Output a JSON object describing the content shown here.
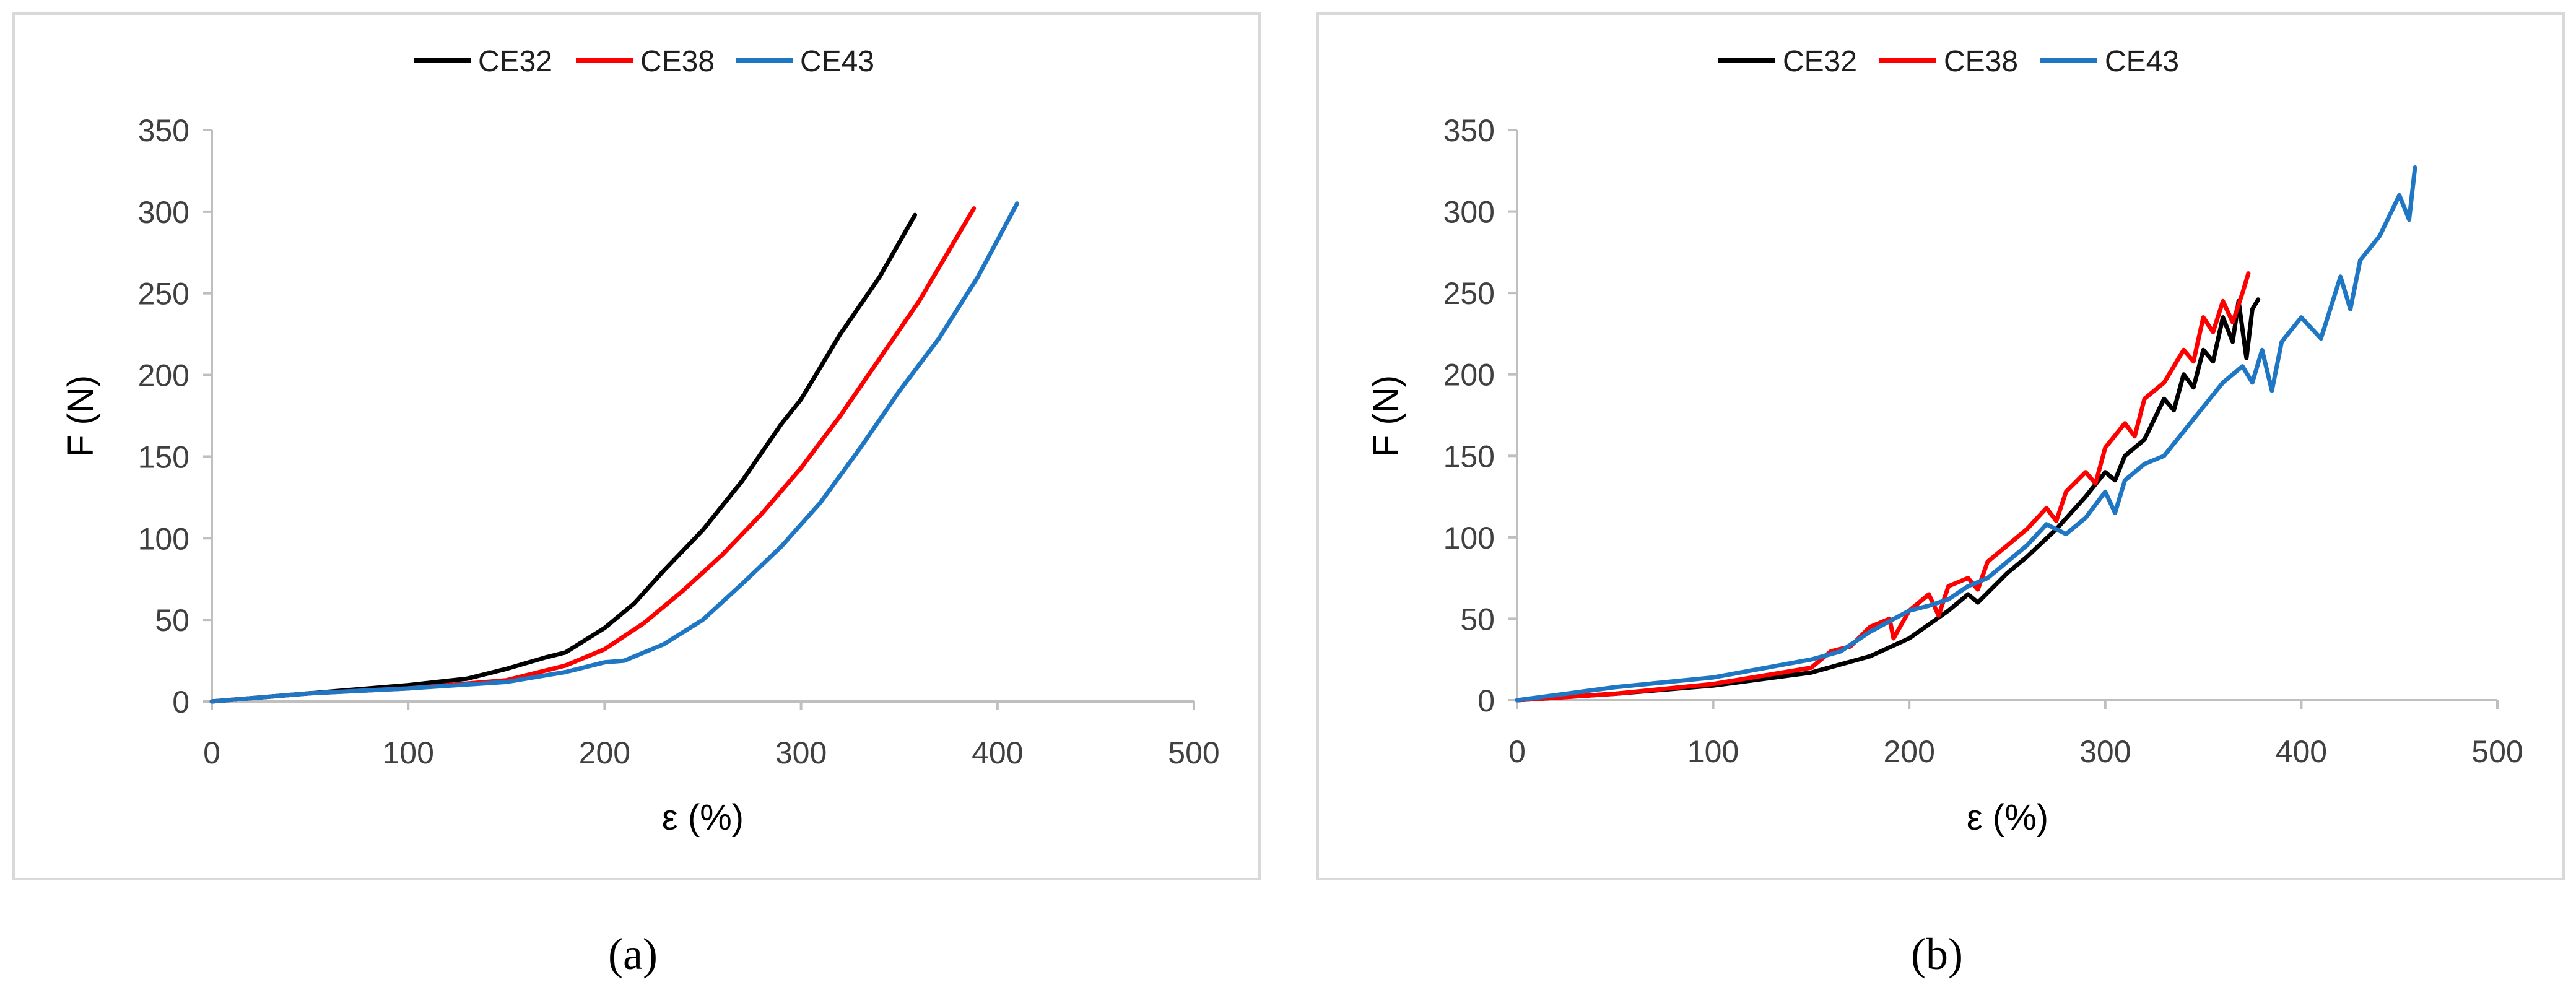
{
  "chart_data": [
    {
      "type": "line",
      "caption": "(a)",
      "xlabel": "ε (%)",
      "ylabel": "F (N)",
      "xlim": [
        0,
        500
      ],
      "ylim": [
        0,
        350
      ],
      "xticks": [
        "0",
        "100",
        "200",
        "300",
        "400",
        "500"
      ],
      "yticks": [
        "0",
        "50",
        "100",
        "150",
        "200",
        "250",
        "300",
        "350"
      ],
      "legend_position": "top-center",
      "series": [
        {
          "name": "CE32",
          "color": "#000000",
          "x": [
            0,
            50,
            100,
            130,
            150,
            170,
            180,
            200,
            215,
            230,
            250,
            270,
            290,
            300,
            320,
            340,
            358
          ],
          "y": [
            0,
            5,
            10,
            14,
            20,
            27,
            30,
            45,
            60,
            80,
            105,
            135,
            170,
            185,
            225,
            260,
            298
          ]
        },
        {
          "name": "CE38",
          "color": "#ff0000",
          "x": [
            0,
            50,
            100,
            150,
            180,
            200,
            220,
            240,
            260,
            280,
            300,
            320,
            340,
            360,
            388
          ],
          "y": [
            0,
            5,
            8,
            13,
            22,
            32,
            48,
            68,
            90,
            115,
            143,
            175,
            210,
            245,
            302
          ]
        },
        {
          "name": "CE43",
          "color": "#1f77c4",
          "x": [
            0,
            50,
            100,
            150,
            180,
            200,
            210,
            230,
            250,
            270,
            290,
            310,
            330,
            350,
            370,
            390,
            410
          ],
          "y": [
            0,
            5,
            8,
            12,
            18,
            24,
            25,
            35,
            50,
            72,
            95,
            122,
            155,
            190,
            222,
            260,
            305
          ]
        }
      ]
    },
    {
      "type": "line",
      "caption": "(b)",
      "xlabel": "ε (%)",
      "ylabel": "F (N)",
      "xlim": [
        0,
        500
      ],
      "ylim": [
        0,
        350
      ],
      "xticks": [
        "0",
        "100",
        "200",
        "300",
        "400",
        "500"
      ],
      "yticks": [
        "0",
        "50",
        "100",
        "150",
        "200",
        "250",
        "300",
        "350"
      ],
      "legend_position": "top-center",
      "series": [
        {
          "name": "CE32",
          "color": "#000000",
          "x": [
            0,
            50,
            100,
            150,
            180,
            200,
            220,
            230,
            235,
            245,
            250,
            260,
            275,
            290,
            300,
            305,
            310,
            320,
            330,
            335,
            340,
            345,
            350,
            355,
            360,
            365,
            368,
            372,
            375,
            378
          ],
          "y": [
            0,
            4,
            9,
            17,
            27,
            38,
            55,
            65,
            60,
            72,
            78,
            88,
            105,
            125,
            140,
            135,
            150,
            160,
            185,
            178,
            200,
            192,
            215,
            208,
            235,
            220,
            245,
            210,
            240,
            246
          ]
        },
        {
          "name": "CE38",
          "color": "#ff0000",
          "x": [
            0,
            50,
            100,
            150,
            160,
            170,
            180,
            190,
            192,
            200,
            210,
            215,
            220,
            230,
            235,
            240,
            250,
            260,
            270,
            275,
            280,
            290,
            295,
            300,
            310,
            315,
            320,
            330,
            340,
            345,
            350,
            355,
            360,
            365,
            370,
            373
          ],
          "y": [
            0,
            4,
            10,
            20,
            30,
            33,
            45,
            50,
            38,
            55,
            65,
            52,
            70,
            75,
            68,
            85,
            95,
            105,
            118,
            110,
            128,
            140,
            133,
            155,
            170,
            162,
            185,
            195,
            215,
            208,
            235,
            226,
            245,
            232,
            250,
            262
          ]
        },
        {
          "name": "CE43",
          "color": "#1f77c4",
          "x": [
            0,
            50,
            100,
            150,
            165,
            180,
            200,
            210,
            220,
            230,
            240,
            250,
            260,
            270,
            280,
            290,
            300,
            305,
            310,
            320,
            330,
            340,
            350,
            360,
            370,
            375,
            380,
            385,
            390,
            400,
            410,
            420,
            425,
            430,
            440,
            450,
            455,
            458
          ],
          "y": [
            0,
            8,
            14,
            25,
            30,
            42,
            55,
            58,
            62,
            70,
            75,
            85,
            95,
            108,
            102,
            112,
            128,
            115,
            135,
            145,
            150,
            165,
            180,
            195,
            205,
            195,
            215,
            190,
            220,
            235,
            222,
            260,
            240,
            270,
            285,
            310,
            295,
            327
          ]
        }
      ]
    }
  ]
}
